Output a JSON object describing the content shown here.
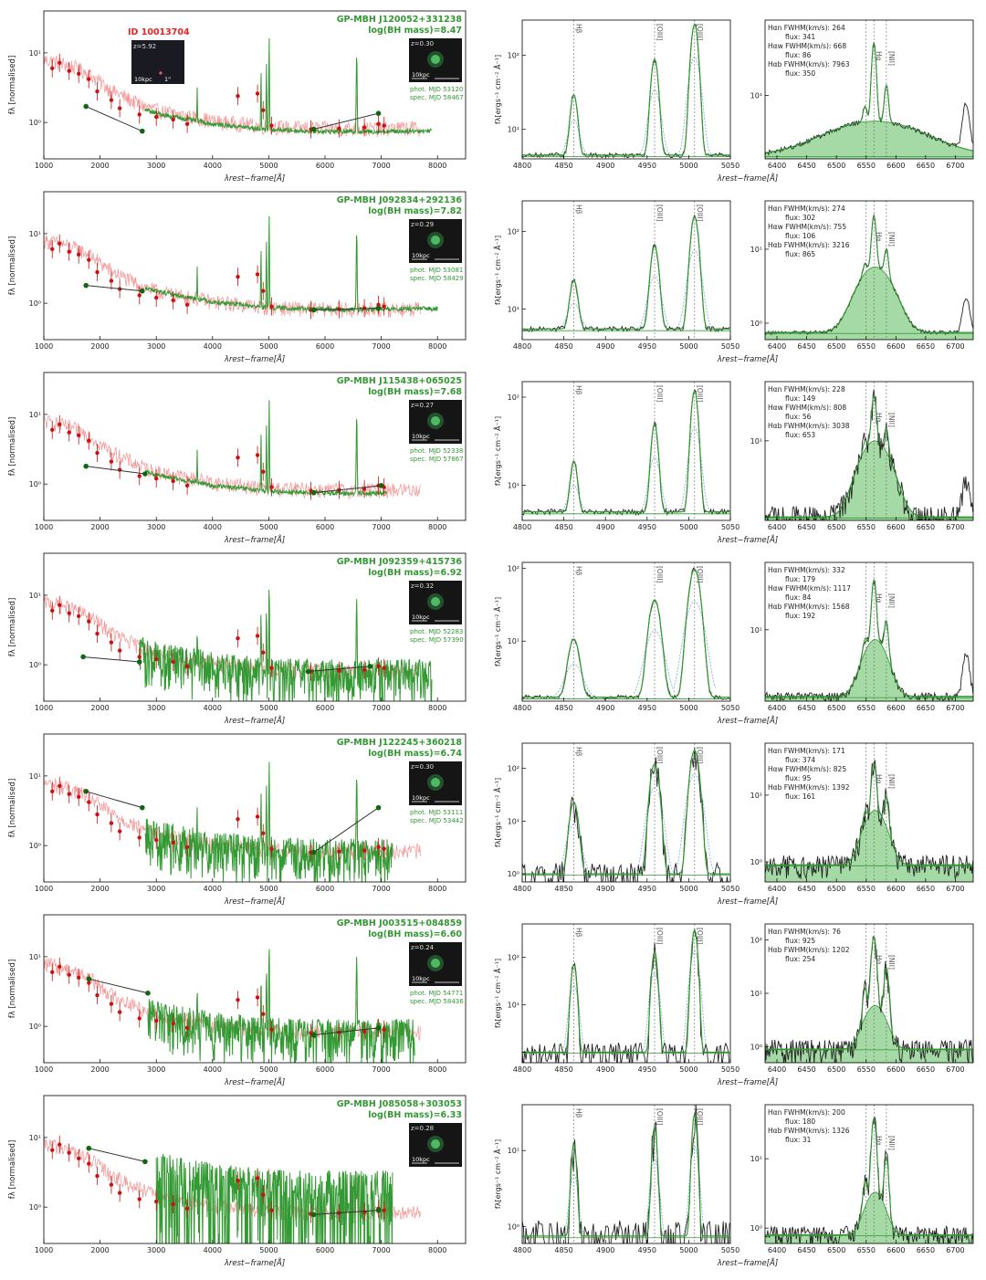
{
  "colors": {
    "sed_red": "#f08080",
    "phot_red": "#cc1111",
    "green": "#339933",
    "dark_green": "#116611",
    "fill_green": "#7fc97f",
    "comp_blue": "#7aa7d6",
    "id_red": "#ee2222",
    "line_black": "#222222"
  },
  "chart_data": {
    "type": "line",
    "figure_title": "ID 10013704",
    "sed_xlabel": "λrest−frame[Å]",
    "sed_ylabel": "fλ [normalised]",
    "zoom_xlabel": "λrest−frame[Å]",
    "zoom_ylabel": "fλ[ergs⁻¹ cm⁻² Å⁻¹]",
    "sed_xticks": [
      "1000",
      "2000",
      "3000",
      "4000",
      "5000",
      "6000",
      "7000",
      "8000"
    ],
    "sed_xlim": [
      1000,
      8500
    ],
    "sed_ylim": [
      0.3,
      40
    ],
    "sed_yticks": [
      "10⁰",
      "10¹"
    ],
    "hb_xticks": [
      "4800",
      "4850",
      "4900",
      "4950",
      "5000",
      "5050"
    ],
    "hb_xlim": [
      4800,
      5050
    ],
    "ha_xticks": [
      "6400",
      "6450",
      "6500",
      "6550",
      "6600",
      "6650",
      "6700"
    ],
    "ha_xlim": [
      6380,
      6730
    ],
    "line_labels": {
      "hb": "Hβ",
      "oiii": "[OIII]",
      "ha": "Hα",
      "nii": "[NII]"
    },
    "id_thumb": {
      "z_label": "z=5.92",
      "scale_label": "10kpc",
      "ang_label": "1\""
    },
    "phot_points": {
      "x": [
        1150,
        1280,
        1450,
        1620,
        1800,
        1950,
        2200,
        2350,
        2700,
        3000,
        3300,
        3550,
        4450,
        4800,
        4900,
        5050,
        5750,
        6250,
        6700,
        6950,
        7050
      ],
      "y": [
        6.0,
        7.2,
        5.5,
        5.0,
        4.2,
        2.8,
        2.1,
        1.6,
        1.3,
        1.2,
        1.1,
        0.95,
        2.4,
        2.6,
        1.5,
        0.9,
        0.8,
        0.82,
        0.85,
        0.95,
        0.9
      ]
    },
    "galaxy_sed": {
      "x": [
        1000,
        1200,
        1400,
        1600,
        1800,
        2000,
        2200,
        2400,
        2600,
        2800,
        3000,
        3200,
        3500,
        3800,
        4000,
        4300,
        4600,
        4800,
        5000,
        5300,
        5600,
        6000,
        6400,
        6800,
        7200,
        7600,
        8000
      ],
      "y": [
        8,
        7.5,
        6.8,
        6.0,
        5.0,
        3.8,
        2.9,
        2.4,
        2.0,
        1.7,
        1.5,
        1.4,
        1.25,
        1.15,
        1.05,
        1.0,
        0.95,
        0.9,
        0.88,
        0.86,
        0.84,
        0.83,
        0.82,
        0.82,
        0.83,
        0.84,
        0.85
      ]
    },
    "panels": [
      {
        "name": "GP-MBH J120052+331238",
        "mass_label": "log(BH mass)=8.47",
        "z_label": "z=0.30",
        "phot_mjd": "phot. MJD 53120",
        "spec_mjd": "spec. MJD 58467",
        "galex": {
          "x": [
            1750,
            2750
          ],
          "y": [
            1.7,
            0.75
          ]
        },
        "wise": {
          "x": [
            5800,
            6950
          ],
          "y": [
            0.8,
            1.35
          ]
        },
        "sed_start": 2800,
        "sed_end": 7900,
        "sed_scale": 1.0,
        "hb_ylim": [
          4,
          300
        ],
        "hb_ytick_labels": [
          "10¹",
          "10²"
        ],
        "hb_peaks": {
          "hb": 25,
          "o3a": 85,
          "o3b": 260
        },
        "hb_width": 3.5,
        "hb_base": 4.5,
        "ha_ylim": [
          2.2,
          60
        ],
        "ha_ytick_labels": [
          "10¹"
        ],
        "ha_broad": {
          "amp": 3.0,
          "sigma": 75
        },
        "ha_narrow": 30,
        "ha_base": 2.4,
        "ha_noise": 0.05,
        "fwhm_lines": [
          "Hαn FWHM(km/s): 264",
          "flux: 341",
          "Hαw FWHM(km/s): 668",
          "flux: 86",
          "Hαb FWHM(km/s): 7963",
          "flux: 350"
        ]
      },
      {
        "name": "GP-MBH J092834+292136",
        "mass_label": "log(BH mass)=7.82",
        "z_label": "z=0.29",
        "phot_mjd": "phot. MJD 53081",
        "spec_mjd": "spec. MJD 58429",
        "galex": {
          "x": [
            1750,
            2750
          ],
          "y": [
            1.8,
            1.5
          ]
        },
        "wise": {
          "x": [
            5800,
            6950
          ],
          "y": [
            0.8,
            0.85
          ]
        },
        "sed_start": 2800,
        "sed_end": 8000,
        "sed_scale": 1.1,
        "hb_ylim": [
          4,
          250
        ],
        "hb_ytick_labels": [
          "10¹",
          "10²"
        ],
        "hb_peaks": {
          "hb": 18,
          "o3a": 60,
          "o3b": 150
        },
        "hb_width": 4.0,
        "hb_base": 5.5,
        "ha_ylim": [
          0.6,
          45
        ],
        "ha_ytick_labels": [
          "10⁰",
          "10¹"
        ],
        "ha_broad": {
          "amp": 5.0,
          "sigma": 25
        },
        "ha_narrow": 22,
        "ha_base": 0.75,
        "ha_noise": 0.05,
        "fwhm_lines": [
          "Hαn FWHM(km/s): 274",
          "flux: 302",
          "Hαw FWHM(km/s): 755",
          "flux: 106",
          "Hαb FWHM(km/s): 3216",
          "flux: 865"
        ]
      },
      {
        "name": "GP-MBH J115438+065025",
        "mass_label": "log(BH mass)=7.68",
        "z_label": "z=0.27",
        "phot_mjd": "phot. MJD 52338",
        "spec_mjd": "spec. MJD 57867",
        "galex": {
          "x": [
            1750,
            2800
          ],
          "y": [
            1.8,
            1.4
          ]
        },
        "wise": {
          "x": [
            5800,
            7000
          ],
          "y": [
            0.75,
            0.95
          ]
        },
        "sed_start": 2800,
        "sed_end": 7100,
        "sed_scale": 1.0,
        "hb_ylim": [
          4,
          150
        ],
        "hb_ytick_labels": [
          "10¹",
          "10²"
        ],
        "hb_peaks": {
          "hb": 14,
          "o3a": 45,
          "o3b": 115
        },
        "hb_width": 3.5,
        "hb_base": 5.0,
        "ha_ylim": [
          0.9,
          60
        ],
        "ha_ytick_labels": [
          "10¹"
        ],
        "ha_broad": {
          "amp": 9.0,
          "sigma": 22
        },
        "ha_narrow": 30,
        "ha_base": 1.0,
        "ha_noise": 0.35,
        "fwhm_lines": [
          "Hαn FWHM(km/s): 228",
          "flux: 149",
          "Hαw FWHM(km/s): 808",
          "flux: 56",
          "Hαb FWHM(km/s): 3038",
          "flux: 653"
        ]
      },
      {
        "name": "GP-MBH J092359+415736",
        "mass_label": "log(BH mass)=6.92",
        "z_label": "z=0.32",
        "phot_mjd": "phot. MJD 52283",
        "spec_mjd": "spec. MJD 57390",
        "galex": {
          "x": [
            1700,
            2700
          ],
          "y": [
            1.3,
            1.1
          ]
        },
        "wise": {
          "x": [
            5700,
            6800
          ],
          "y": [
            0.8,
            0.95
          ]
        },
        "sed_start": 2700,
        "sed_end": 7900,
        "sed_scale": 0.95,
        "hb_ylim": [
          1.5,
          120
        ],
        "hb_ytick_labels": [
          "10¹",
          "10²"
        ],
        "hb_peaks": {
          "hb": 9,
          "o3a": 35,
          "o3b": 95
        },
        "hb_width": 5.5,
        "hb_base": 1.7,
        "ha_ylim": [
          1.5,
          60
        ],
        "ha_ytick_labels": [
          "10¹"
        ],
        "ha_broad": {
          "amp": 6.0,
          "sigma": 18
        },
        "ha_narrow": 30,
        "ha_base": 1.7,
        "ha_noise": 0.1,
        "fwhm_lines": [
          "Hαn FWHM(km/s): 332",
          "flux: 179",
          "Hαw FWHM(km/s): 1117",
          "flux: 84",
          "Hαb FWHM(km/s): 1568",
          "flux: 192"
        ]
      },
      {
        "name": "GP-MBH J122245+360218",
        "mass_label": "log(BH mass)=6.74",
        "z_label": "z=0.30",
        "phot_mjd": "phot. MJD 53111",
        "spec_mjd": "spec. MJD 53442",
        "galex": {
          "x": [
            1750,
            2750
          ],
          "y": [
            6.0,
            3.5
          ]
        },
        "wise": {
          "x": [
            5800,
            6950
          ],
          "y": [
            0.8,
            3.5
          ]
        },
        "sed_start": 2800,
        "sed_end": 7200,
        "sed_scale": 1.0,
        "hb_ylim": [
          0.7,
          300
        ],
        "hb_ytick_labels": [
          "10⁰",
          "10¹",
          "10²"
        ],
        "hb_peaks": {
          "hb": 22,
          "o3a": 120,
          "o3b": 220
        },
        "hb_width": 4.0,
        "hb_base": 1.0,
        "ha_ylim": [
          0.5,
          60
        ],
        "ha_ytick_labels": [
          "10⁰",
          "10¹"
        ],
        "ha_broad": {
          "amp": 5.0,
          "sigma": 16
        },
        "ha_narrow": 25,
        "ha_base": 0.9,
        "ha_noise": 0.35,
        "fwhm_lines": [
          "Hαn FWHM(km/s): 171",
          "flux: 374",
          "Hαw FWHM(km/s): 825",
          "flux: 95",
          "Hαb FWHM(km/s): 1392",
          "flux: 161"
        ]
      },
      {
        "name": "GP-MBH J003515+084859",
        "mass_label": "log(BH mass)=6.60",
        "z_label": "z=0.24",
        "phot_mjd": "phot. MJD 54771",
        "spec_mjd": "spec. MJD 58436",
        "galex": {
          "x": [
            1800,
            2850
          ],
          "y": [
            4.8,
            3.0
          ]
        },
        "wise": {
          "x": [
            5800,
            6950
          ],
          "y": [
            0.75,
            0.95
          ]
        },
        "sed_start": 2850,
        "sed_end": 7600,
        "sed_scale": 1.0,
        "hb_ylim": [
          0.6,
          500
        ],
        "hb_ytick_labels": [
          "10¹",
          "10²"
        ],
        "hb_peaks": {
          "hb": 70,
          "o3a": 130,
          "o3b": 380
        },
        "hb_width": 2.5,
        "hb_base": 1.0,
        "ha_ylim": [
          0.5,
          200
        ],
        "ha_ytick_labels": [
          "10⁰",
          "10¹",
          "10²"
        ],
        "ha_broad": {
          "amp": 5.0,
          "sigma": 15
        },
        "ha_narrow": 110,
        "ha_base": 0.9,
        "ha_noise": 0.45,
        "fwhm_lines": [
          "Hαn FWHM(km/s): 76",
          "flux: 925",
          "Hαb FWHM(km/s): 1202",
          "flux: 254"
        ]
      },
      {
        "name": "GP-MBH J085058+303053",
        "mass_label": "log(BH mass)=6.33",
        "z_label": "z=0.28",
        "phot_mjd": "",
        "spec_mjd": "",
        "galex": {
          "x": [
            1800,
            2800
          ],
          "y": [
            7.0,
            4.5
          ]
        },
        "wise": {
          "x": [
            5800,
            6950
          ],
          "y": [
            0.78,
            0.9
          ]
        },
        "sed_start": 3000,
        "sed_end": 7200,
        "sed_scale": 1.0,
        "hb_ylim": [
          0.6,
          40
        ],
        "hb_ytick_labels": [
          "10⁰",
          "10¹"
        ],
        "hb_peaks": {
          "hb": 12,
          "o3a": 20,
          "o3b": 30
        },
        "hb_width": 2.5,
        "hb_base": 0.75,
        "ha_ylim": [
          0.6,
          60
        ],
        "ha_ytick_labels": [
          "10⁰",
          "10¹"
        ],
        "ha_broad": {
          "amp": 2.5,
          "sigma": 14
        },
        "ha_narrow": 35,
        "ha_base": 0.8,
        "ha_noise": 0.3,
        "fwhm_lines": [
          "Hαn FWHM(km/s): 200",
          "flux: 180",
          "Hαb FWHM(km/s): 1326",
          "flux: 31"
        ]
      }
    ]
  }
}
